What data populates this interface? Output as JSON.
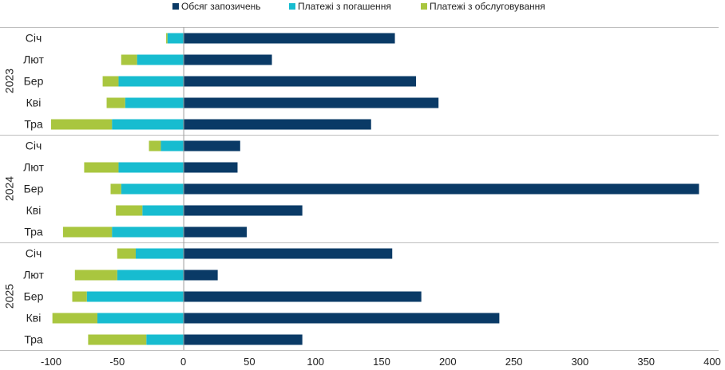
{
  "chart_data": {
    "type": "bar",
    "orientation": "horizontal",
    "stacked": true,
    "title": "",
    "xlabel": "",
    "ylabel": "",
    "xlim": [
      -100,
      400
    ],
    "x_ticks": [
      -100,
      -50,
      0,
      50,
      100,
      150,
      200,
      250,
      300,
      350,
      400
    ],
    "grid": false,
    "legend_position": "top",
    "groups": [
      "2023",
      "2024",
      "2025"
    ],
    "categories": [
      "Січ",
      "Лют",
      "Бер",
      "Кві",
      "Тра"
    ],
    "series": [
      {
        "name": "Обсяг запозичень",
        "color": "#0a3a66",
        "values": [
          [
            160,
            67,
            176,
            193,
            142
          ],
          [
            43,
            41,
            390,
            90,
            48
          ],
          [
            158,
            26,
            180,
            239,
            90
          ]
        ]
      },
      {
        "name": "Платежі з погашення",
        "color": "#17bcd0",
        "values": [
          [
            -12,
            -35,
            -49,
            -44,
            -54
          ],
          [
            -17,
            -49,
            -47,
            -31,
            -54
          ],
          [
            -36,
            -50,
            -73,
            -65,
            -28
          ]
        ]
      },
      {
        "name": "Платежі з обслуговування",
        "color": "#a9c63f",
        "values": [
          [
            -1,
            -12,
            -12,
            -14,
            -46
          ],
          [
            -9,
            -26,
            -8,
            -20,
            -37
          ],
          [
            -14,
            -32,
            -11,
            -34,
            -44
          ]
        ]
      }
    ]
  }
}
